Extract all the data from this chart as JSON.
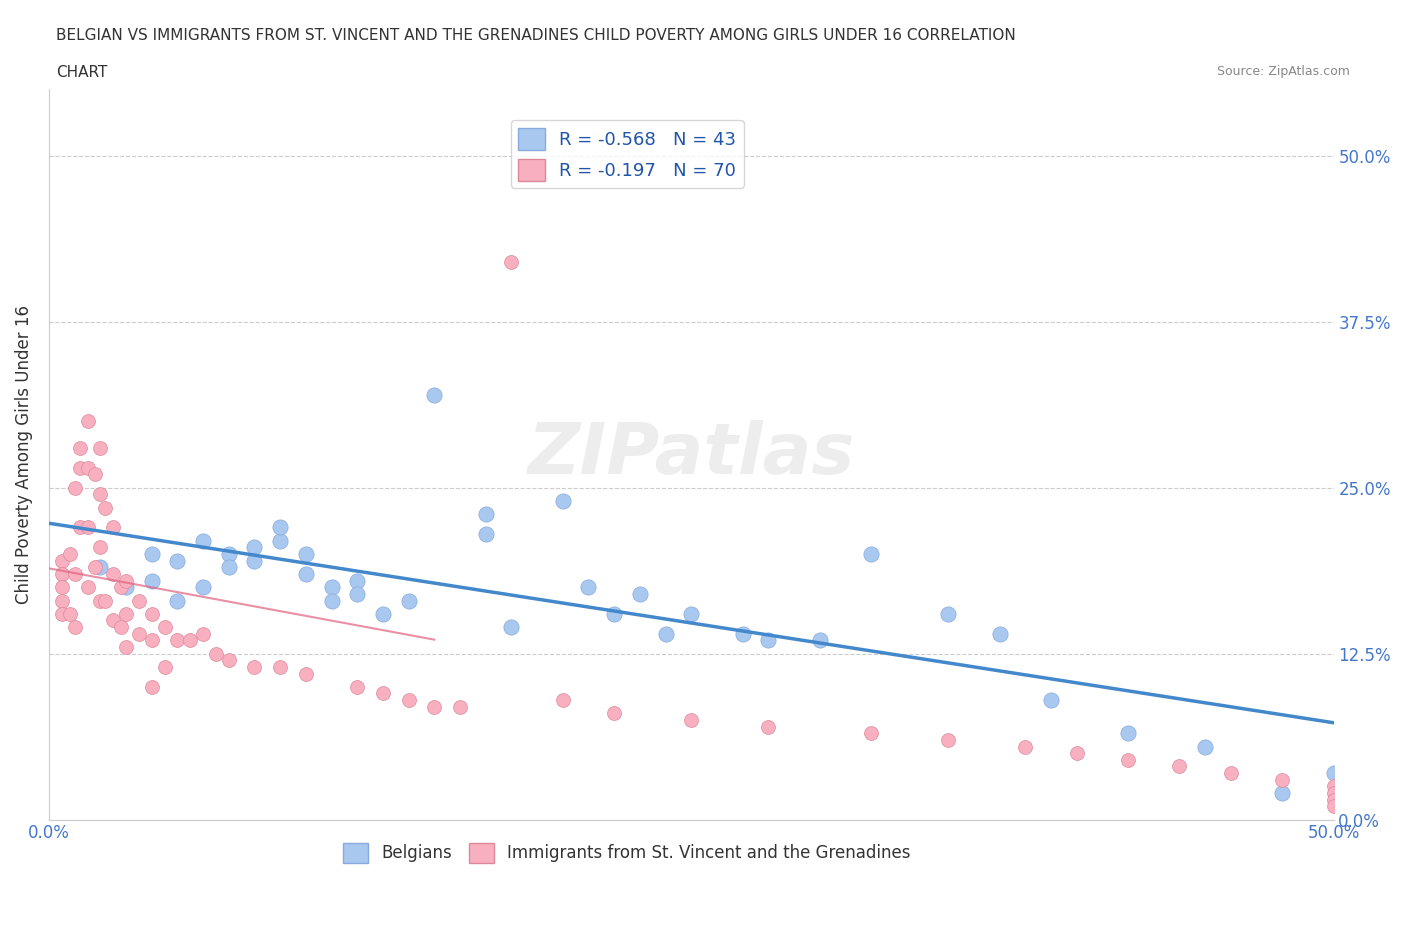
{
  "title_line1": "BELGIAN VS IMMIGRANTS FROM ST. VINCENT AND THE GRENADINES CHILD POVERTY AMONG GIRLS UNDER 16 CORRELATION",
  "title_line2": "CHART",
  "source": "Source: ZipAtlas.com",
  "xlabel": "",
  "ylabel": "Child Poverty Among Girls Under 16",
  "xlim": [
    0.0,
    0.5
  ],
  "ylim": [
    0.0,
    0.55
  ],
  "xticks": [
    0.0,
    0.125,
    0.25,
    0.375,
    0.5
  ],
  "xtick_labels": [
    "0.0%",
    "",
    "",
    "",
    "50.0%"
  ],
  "ytick_labels_right": [
    "0.0%",
    "12.5%",
    "25.0%",
    "37.5%",
    "50.0%"
  ],
  "yticks_right": [
    0.0,
    0.125,
    0.25,
    0.375,
    0.5
  ],
  "blue_R": -0.568,
  "blue_N": 43,
  "pink_R": -0.197,
  "pink_N": 70,
  "blue_color": "#a8c8f0",
  "pink_color": "#f8b0c0",
  "blue_trend_color": "#4488cc",
  "pink_trend_color": "#e06080",
  "watermark": "ZIPatlas",
  "legend_label1": "Belgians",
  "legend_label2": "Immigrants from St. Vincent and the Grenadines",
  "blue_x": [
    0.02,
    0.03,
    0.04,
    0.04,
    0.05,
    0.05,
    0.06,
    0.06,
    0.07,
    0.07,
    0.08,
    0.08,
    0.09,
    0.09,
    0.1,
    0.1,
    0.11,
    0.11,
    0.12,
    0.12,
    0.13,
    0.14,
    0.15,
    0.17,
    0.17,
    0.18,
    0.2,
    0.21,
    0.22,
    0.23,
    0.24,
    0.25,
    0.27,
    0.28,
    0.3,
    0.32,
    0.35,
    0.37,
    0.39,
    0.42,
    0.45,
    0.48,
    0.5
  ],
  "blue_y": [
    0.19,
    0.175,
    0.2,
    0.18,
    0.165,
    0.195,
    0.175,
    0.21,
    0.2,
    0.19,
    0.205,
    0.195,
    0.21,
    0.22,
    0.2,
    0.185,
    0.175,
    0.165,
    0.18,
    0.17,
    0.155,
    0.165,
    0.32,
    0.23,
    0.215,
    0.145,
    0.24,
    0.175,
    0.155,
    0.17,
    0.14,
    0.155,
    0.14,
    0.135,
    0.135,
    0.2,
    0.155,
    0.14,
    0.09,
    0.065,
    0.055,
    0.02,
    0.035
  ],
  "pink_x": [
    0.005,
    0.005,
    0.005,
    0.005,
    0.005,
    0.008,
    0.008,
    0.01,
    0.01,
    0.01,
    0.012,
    0.012,
    0.012,
    0.015,
    0.015,
    0.015,
    0.015,
    0.018,
    0.018,
    0.02,
    0.02,
    0.02,
    0.02,
    0.022,
    0.022,
    0.025,
    0.025,
    0.025,
    0.028,
    0.028,
    0.03,
    0.03,
    0.03,
    0.035,
    0.035,
    0.04,
    0.04,
    0.04,
    0.045,
    0.045,
    0.05,
    0.055,
    0.06,
    0.065,
    0.07,
    0.08,
    0.09,
    0.1,
    0.12,
    0.13,
    0.14,
    0.15,
    0.16,
    0.18,
    0.2,
    0.22,
    0.25,
    0.28,
    0.32,
    0.35,
    0.38,
    0.4,
    0.42,
    0.44,
    0.46,
    0.48,
    0.5,
    0.5,
    0.5,
    0.5
  ],
  "pink_y": [
    0.195,
    0.185,
    0.175,
    0.165,
    0.155,
    0.2,
    0.155,
    0.25,
    0.185,
    0.145,
    0.28,
    0.265,
    0.22,
    0.3,
    0.265,
    0.22,
    0.175,
    0.26,
    0.19,
    0.28,
    0.245,
    0.205,
    0.165,
    0.235,
    0.165,
    0.22,
    0.185,
    0.15,
    0.175,
    0.145,
    0.18,
    0.155,
    0.13,
    0.165,
    0.14,
    0.155,
    0.135,
    0.1,
    0.145,
    0.115,
    0.135,
    0.135,
    0.14,
    0.125,
    0.12,
    0.115,
    0.115,
    0.11,
    0.1,
    0.095,
    0.09,
    0.085,
    0.085,
    0.42,
    0.09,
    0.08,
    0.075,
    0.07,
    0.065,
    0.06,
    0.055,
    0.05,
    0.045,
    0.04,
    0.035,
    0.03,
    0.025,
    0.02,
    0.015,
    0.01
  ]
}
